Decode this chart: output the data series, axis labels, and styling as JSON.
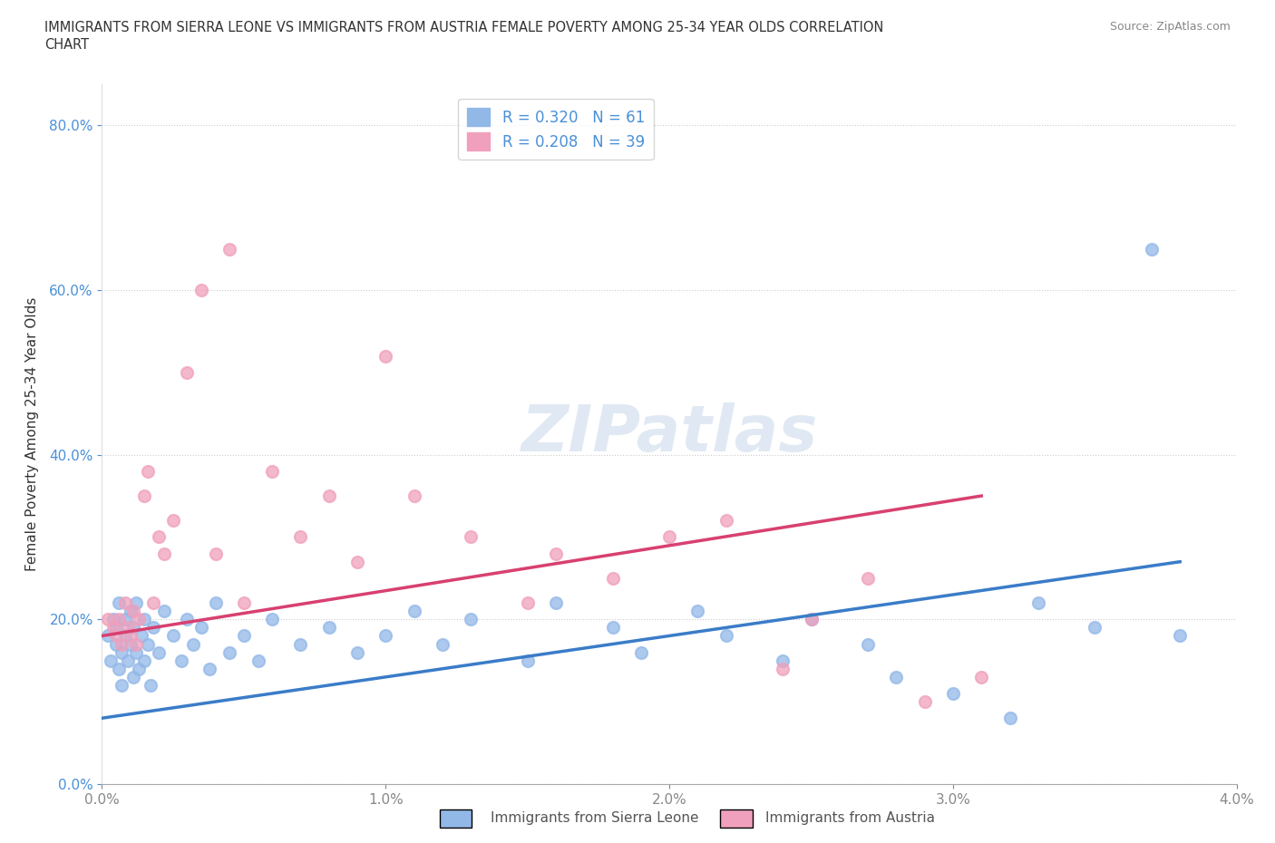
{
  "title_line1": "IMMIGRANTS FROM SIERRA LEONE VS IMMIGRANTS FROM AUSTRIA FEMALE POVERTY AMONG 25-34 YEAR OLDS CORRELATION",
  "title_line2": "CHART",
  "source": "Source: ZipAtlas.com",
  "xlabel_label": "Immigrants from Sierra Leone",
  "xlabel_label2": "Immigrants from Austria",
  "ylabel": "Female Poverty Among 25-34 Year Olds",
  "xlim": [
    0.0,
    0.04
  ],
  "ylim": [
    0.0,
    0.85
  ],
  "x_ticks": [
    0.0,
    0.01,
    0.02,
    0.03,
    0.04
  ],
  "x_tick_labels": [
    "0.0%",
    "1.0%",
    "2.0%",
    "3.0%",
    "4.0%"
  ],
  "y_ticks": [
    0.0,
    0.2,
    0.4,
    0.6,
    0.8
  ],
  "y_tick_labels": [
    "0.0%",
    "20.0%",
    "40.0%",
    "60.0%",
    "80.0%"
  ],
  "legend_r1": "R = 0.320",
  "legend_n1": "N = 61",
  "legend_r2": "R = 0.208",
  "legend_n2": "N = 39",
  "color_sierra": "#92b8e8",
  "color_austria": "#f0a0bc",
  "line_color_sierra": "#3a7cc8",
  "line_color_austria": "#d84070",
  "watermark": "ZIPatlas",
  "background_color": "#ffffff",
  "sierra_leone_x": [
    0.0002,
    0.0003,
    0.0004,
    0.0005,
    0.0005,
    0.0006,
    0.0006,
    0.0007,
    0.0007,
    0.0008,
    0.0008,
    0.0009,
    0.001,
    0.001,
    0.0011,
    0.0011,
    0.0012,
    0.0012,
    0.0013,
    0.0014,
    0.0015,
    0.0015,
    0.0016,
    0.0017,
    0.0018,
    0.002,
    0.0022,
    0.0025,
    0.0028,
    0.003,
    0.0032,
    0.0035,
    0.0038,
    0.004,
    0.0045,
    0.005,
    0.0055,
    0.006,
    0.007,
    0.008,
    0.009,
    0.01,
    0.011,
    0.012,
    0.013,
    0.015,
    0.016,
    0.018,
    0.019,
    0.021,
    0.022,
    0.024,
    0.025,
    0.027,
    0.028,
    0.03,
    0.032,
    0.033,
    0.035,
    0.037,
    0.038
  ],
  "sierra_leone_y": [
    0.18,
    0.15,
    0.2,
    0.17,
    0.19,
    0.14,
    0.22,
    0.12,
    0.16,
    0.18,
    0.2,
    0.15,
    0.17,
    0.21,
    0.13,
    0.19,
    0.16,
    0.22,
    0.14,
    0.18,
    0.2,
    0.15,
    0.17,
    0.12,
    0.19,
    0.16,
    0.21,
    0.18,
    0.15,
    0.2,
    0.17,
    0.19,
    0.14,
    0.22,
    0.16,
    0.18,
    0.15,
    0.2,
    0.17,
    0.19,
    0.16,
    0.18,
    0.21,
    0.17,
    0.2,
    0.15,
    0.22,
    0.19,
    0.16,
    0.21,
    0.18,
    0.15,
    0.2,
    0.17,
    0.13,
    0.11,
    0.08,
    0.22,
    0.19,
    0.65,
    0.18
  ],
  "austria_x": [
    0.0002,
    0.0004,
    0.0005,
    0.0006,
    0.0007,
    0.0008,
    0.0009,
    0.001,
    0.0011,
    0.0012,
    0.0013,
    0.0015,
    0.0016,
    0.0018,
    0.002,
    0.0022,
    0.0025,
    0.003,
    0.0035,
    0.004,
    0.0045,
    0.005,
    0.006,
    0.007,
    0.008,
    0.009,
    0.01,
    0.011,
    0.013,
    0.015,
    0.016,
    0.018,
    0.02,
    0.022,
    0.024,
    0.025,
    0.027,
    0.029,
    0.031
  ],
  "austria_y": [
    0.2,
    0.19,
    0.18,
    0.2,
    0.17,
    0.22,
    0.19,
    0.18,
    0.21,
    0.17,
    0.2,
    0.35,
    0.38,
    0.22,
    0.3,
    0.28,
    0.32,
    0.5,
    0.6,
    0.28,
    0.65,
    0.22,
    0.38,
    0.3,
    0.35,
    0.27,
    0.52,
    0.35,
    0.3,
    0.22,
    0.28,
    0.25,
    0.3,
    0.32,
    0.14,
    0.2,
    0.25,
    0.1,
    0.13
  ],
  "trendline_sierra_x0": 0.0,
  "trendline_sierra_x1": 0.038,
  "trendline_sierra_y0": 0.08,
  "trendline_sierra_y1": 0.27,
  "trendline_austria_x0": 0.0,
  "trendline_austria_x1": 0.031,
  "trendline_austria_y0": 0.18,
  "trendline_austria_y1": 0.35
}
